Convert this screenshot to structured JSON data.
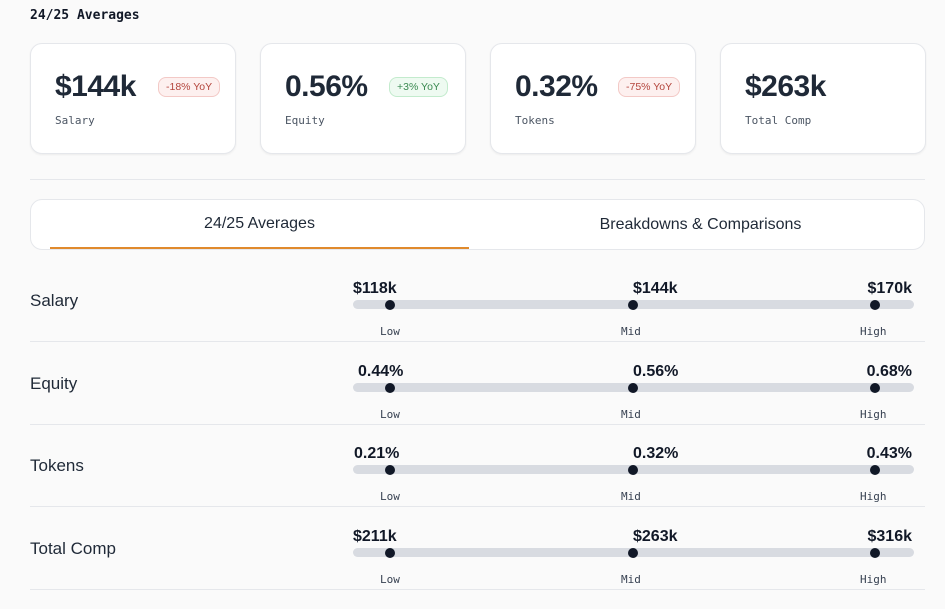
{
  "header": {
    "title": "24/25 Averages"
  },
  "cards": [
    {
      "value": "$144k",
      "badge": "-18% YoY",
      "badge_type": "neg",
      "label": "Salary"
    },
    {
      "value": "0.56%",
      "badge": "+3% YoY",
      "badge_type": "pos",
      "label": "Equity"
    },
    {
      "value": "0.32%",
      "badge": "-75% YoY",
      "badge_type": "neg",
      "label": "Tokens"
    },
    {
      "value": "$263k",
      "badge": "",
      "badge_type": "",
      "label": "Total Comp"
    }
  ],
  "tabs": [
    {
      "label": "24/25 Averages",
      "active": true
    },
    {
      "label": "Breakdowns & Comparisons",
      "active": false
    }
  ],
  "range_labels": {
    "low": "Low",
    "mid": "Mid",
    "high": "High"
  },
  "ranges": [
    {
      "label": "Salary",
      "low": "$118k",
      "mid": "$144k",
      "high": "$170k"
    },
    {
      "label": "Equity",
      "low": "0.44%",
      "mid": "0.56%",
      "high": "0.68%"
    },
    {
      "label": "Tokens",
      "low": "0.21%",
      "mid": "0.32%",
      "high": "0.43%"
    },
    {
      "label": "Total Comp",
      "low": "$211k",
      "mid": "$263k",
      "high": "$316k"
    }
  ],
  "colors": {
    "accent": "#e08a2c",
    "track": "#d8dbe1",
    "negative": "#b4453c",
    "positive": "#3b8a52"
  }
}
